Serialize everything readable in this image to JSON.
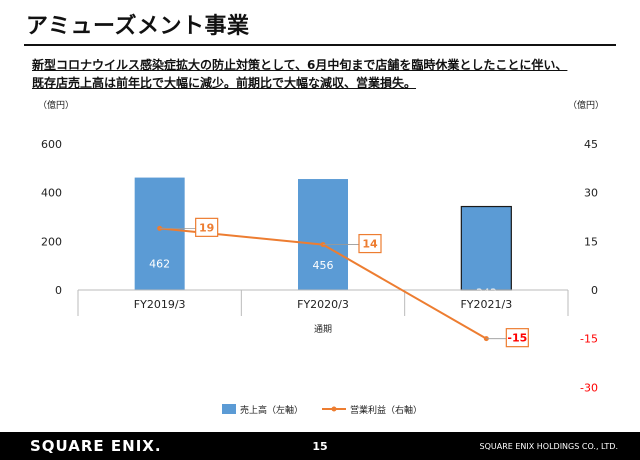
{
  "page": {
    "title": "アミューズメント事業",
    "subtitle_line1": "新型コロナウイルス感染症拡大の防止対策として、6月中旬まで店舗を臨時休業としたことに伴い、",
    "subtitle_line2": "既存店売上高は前年比で大幅に減少。前期比で大幅な減収、営業損失。",
    "page_number": "15",
    "footer_logo": "SQUARE ENIX.",
    "footer_company": "SQUARE ENIX HOLDINGS CO., LTD."
  },
  "colors": {
    "bar": "#5b9bd5",
    "bar_highlight_border": "#1a1a1a",
    "line": "#ed7d31",
    "negative_text": "#ff0000"
  },
  "chart_data": {
    "type": "bar",
    "categories": [
      "FY2019/3",
      "FY2020/3",
      "FY2021/3"
    ],
    "xlabel": "通期",
    "series": [
      {
        "name": "売上高（左軸）",
        "type": "bar",
        "axis": "left",
        "values": [
          462,
          456,
          343
        ]
      },
      {
        "name": "営業利益（右軸）",
        "type": "line",
        "axis": "right",
        "values": [
          19,
          14,
          -15
        ]
      }
    ],
    "y_left": {
      "unit": "（億円）",
      "ylim": [
        0,
        600
      ],
      "ticks": [
        0,
        200,
        400,
        600
      ]
    },
    "y_right": {
      "unit": "（億円）",
      "ylim": [
        -30,
        45
      ],
      "ticks": [
        45,
        30,
        15,
        0,
        -15,
        -30
      ]
    },
    "grid": false,
    "legend": "bottom"
  }
}
